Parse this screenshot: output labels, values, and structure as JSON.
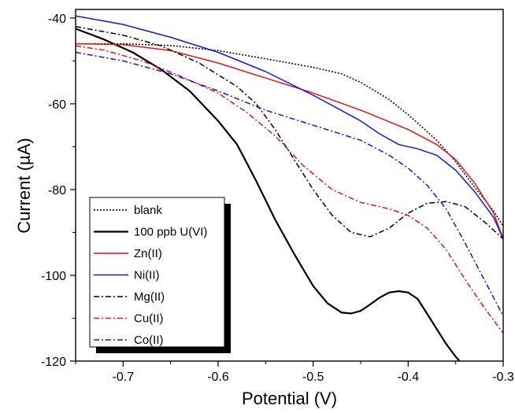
{
  "chart_data": {
    "type": "line",
    "title": "",
    "xlabel": "Potential (V)",
    "ylabel": "Current (µA)",
    "xlim": [
      -0.75,
      -0.3
    ],
    "ylim": [
      -120,
      -38
    ],
    "xticks": [
      -0.7,
      -0.6,
      -0.5,
      -0.4,
      -0.3
    ],
    "xtick_labels": [
      "-0.7",
      "-0.6",
      "-0.5",
      "-0.4",
      "-0.3"
    ],
    "yticks": [
      -120,
      -100,
      -80,
      -60,
      -40
    ],
    "ytick_labels": [
      "-120",
      "-100",
      "-80",
      "-60",
      "-40"
    ],
    "grid": false,
    "legend_position": "bottom-left",
    "series": [
      {
        "name": "blank",
        "color": "#000000",
        "dash": "dotted",
        "points": [
          [
            -0.75,
            -46.0
          ],
          [
            -0.7,
            -46.0
          ],
          [
            -0.65,
            -46.4
          ],
          [
            -0.6,
            -47.6
          ],
          [
            -0.55,
            -49.5
          ],
          [
            -0.5,
            -51.5
          ],
          [
            -0.47,
            -53.0
          ],
          [
            -0.45,
            -55.0
          ],
          [
            -0.42,
            -59.0
          ],
          [
            -0.4,
            -62.5
          ],
          [
            -0.37,
            -68.5
          ],
          [
            -0.35,
            -73.5
          ],
          [
            -0.33,
            -79.5
          ],
          [
            -0.31,
            -85.0
          ],
          [
            -0.3,
            -88.5
          ]
        ]
      },
      {
        "name": "100 ppb U(VI)",
        "color": "#000000",
        "dash": "solid",
        "points": [
          [
            -0.75,
            -42.5
          ],
          [
            -0.72,
            -45.0
          ],
          [
            -0.69,
            -48.0
          ],
          [
            -0.66,
            -52.0
          ],
          [
            -0.63,
            -57.0
          ],
          [
            -0.6,
            -64.0
          ],
          [
            -0.58,
            -69.5
          ],
          [
            -0.56,
            -78.0
          ],
          [
            -0.54,
            -87.0
          ],
          [
            -0.52,
            -95.0
          ],
          [
            -0.5,
            -102.5
          ],
          [
            -0.485,
            -106.5
          ],
          [
            -0.47,
            -108.7
          ],
          [
            -0.46,
            -108.9
          ],
          [
            -0.45,
            -108.3
          ],
          [
            -0.44,
            -106.8
          ],
          [
            -0.43,
            -105.2
          ],
          [
            -0.42,
            -104.0
          ],
          [
            -0.41,
            -103.7
          ],
          [
            -0.4,
            -104.0
          ],
          [
            -0.39,
            -105.5
          ],
          [
            -0.38,
            -109.0
          ],
          [
            -0.37,
            -112.5
          ],
          [
            -0.36,
            -116.0
          ],
          [
            -0.35,
            -119.0
          ],
          [
            -0.346,
            -120.0
          ]
        ]
      },
      {
        "name": "Zn(II)",
        "color": "#e3141b",
        "dash": "solid",
        "points": [
          [
            -0.75,
            -46.0
          ],
          [
            -0.7,
            -46.2
          ],
          [
            -0.65,
            -47.6
          ],
          [
            -0.6,
            -50.5
          ],
          [
            -0.55,
            -54.0
          ],
          [
            -0.5,
            -57.5
          ],
          [
            -0.45,
            -61.5
          ],
          [
            -0.4,
            -66.0
          ],
          [
            -0.37,
            -69.5
          ],
          [
            -0.35,
            -73.0
          ],
          [
            -0.33,
            -78.5
          ],
          [
            -0.31,
            -85.5
          ],
          [
            -0.3,
            -91.5
          ]
        ]
      },
      {
        "name": "Ni(II)",
        "color": "#1616e0",
        "dash": "solid",
        "points": [
          [
            -0.75,
            -39.5
          ],
          [
            -0.7,
            -41.5
          ],
          [
            -0.65,
            -44.5
          ],
          [
            -0.6,
            -48.0
          ],
          [
            -0.55,
            -52.5
          ],
          [
            -0.5,
            -58.0
          ],
          [
            -0.45,
            -64.0
          ],
          [
            -0.43,
            -67.0
          ],
          [
            -0.41,
            -69.5
          ],
          [
            -0.39,
            -70.5
          ],
          [
            -0.37,
            -72.0
          ],
          [
            -0.35,
            -75.5
          ],
          [
            -0.33,
            -80.5
          ],
          [
            -0.31,
            -86.5
          ],
          [
            -0.3,
            -91.5
          ]
        ]
      },
      {
        "name": "Mg(II)",
        "color": "#000000",
        "dash": "dashdot",
        "points": [
          [
            -0.75,
            -42.0
          ],
          [
            -0.7,
            -44.0
          ],
          [
            -0.66,
            -46.5
          ],
          [
            -0.62,
            -50.5
          ],
          [
            -0.58,
            -56.0
          ],
          [
            -0.56,
            -60.0
          ],
          [
            -0.54,
            -66.0
          ],
          [
            -0.52,
            -73.0
          ],
          [
            -0.5,
            -80.0
          ],
          [
            -0.48,
            -86.0
          ],
          [
            -0.46,
            -90.0
          ],
          [
            -0.44,
            -91.0
          ],
          [
            -0.42,
            -89.0
          ],
          [
            -0.4,
            -85.5
          ],
          [
            -0.38,
            -83.2
          ],
          [
            -0.36,
            -82.8
          ],
          [
            -0.34,
            -84.0
          ],
          [
            -0.32,
            -87.5
          ],
          [
            -0.3,
            -91.5
          ]
        ]
      },
      {
        "name": "Cu(II)",
        "color": "#e3141b",
        "dash": "dashdot",
        "points": [
          [
            -0.75,
            -46.5
          ],
          [
            -0.72,
            -47.5
          ],
          [
            -0.68,
            -50.0
          ],
          [
            -0.64,
            -53.5
          ],
          [
            -0.6,
            -57.5
          ],
          [
            -0.57,
            -62.0
          ],
          [
            -0.54,
            -67.5
          ],
          [
            -0.51,
            -74.5
          ],
          [
            -0.48,
            -80.0
          ],
          [
            -0.45,
            -83.0
          ],
          [
            -0.42,
            -84.5
          ],
          [
            -0.4,
            -86.0
          ],
          [
            -0.38,
            -89.0
          ],
          [
            -0.36,
            -94.0
          ],
          [
            -0.34,
            -101.0
          ],
          [
            -0.32,
            -107.5
          ],
          [
            -0.3,
            -113.5
          ]
        ]
      },
      {
        "name": "Co(II)",
        "color": "#1616e0",
        "dash": "dashdot",
        "points": [
          [
            -0.75,
            -48.0
          ],
          [
            -0.7,
            -50.0
          ],
          [
            -0.65,
            -53.0
          ],
          [
            -0.6,
            -57.0
          ],
          [
            -0.55,
            -61.5
          ],
          [
            -0.5,
            -65.0
          ],
          [
            -0.45,
            -68.5
          ],
          [
            -0.42,
            -72.0
          ],
          [
            -0.4,
            -75.0
          ],
          [
            -0.38,
            -79.0
          ],
          [
            -0.36,
            -84.5
          ],
          [
            -0.34,
            -92.5
          ],
          [
            -0.32,
            -101.0
          ],
          [
            -0.3,
            -109.5
          ]
        ]
      }
    ]
  }
}
